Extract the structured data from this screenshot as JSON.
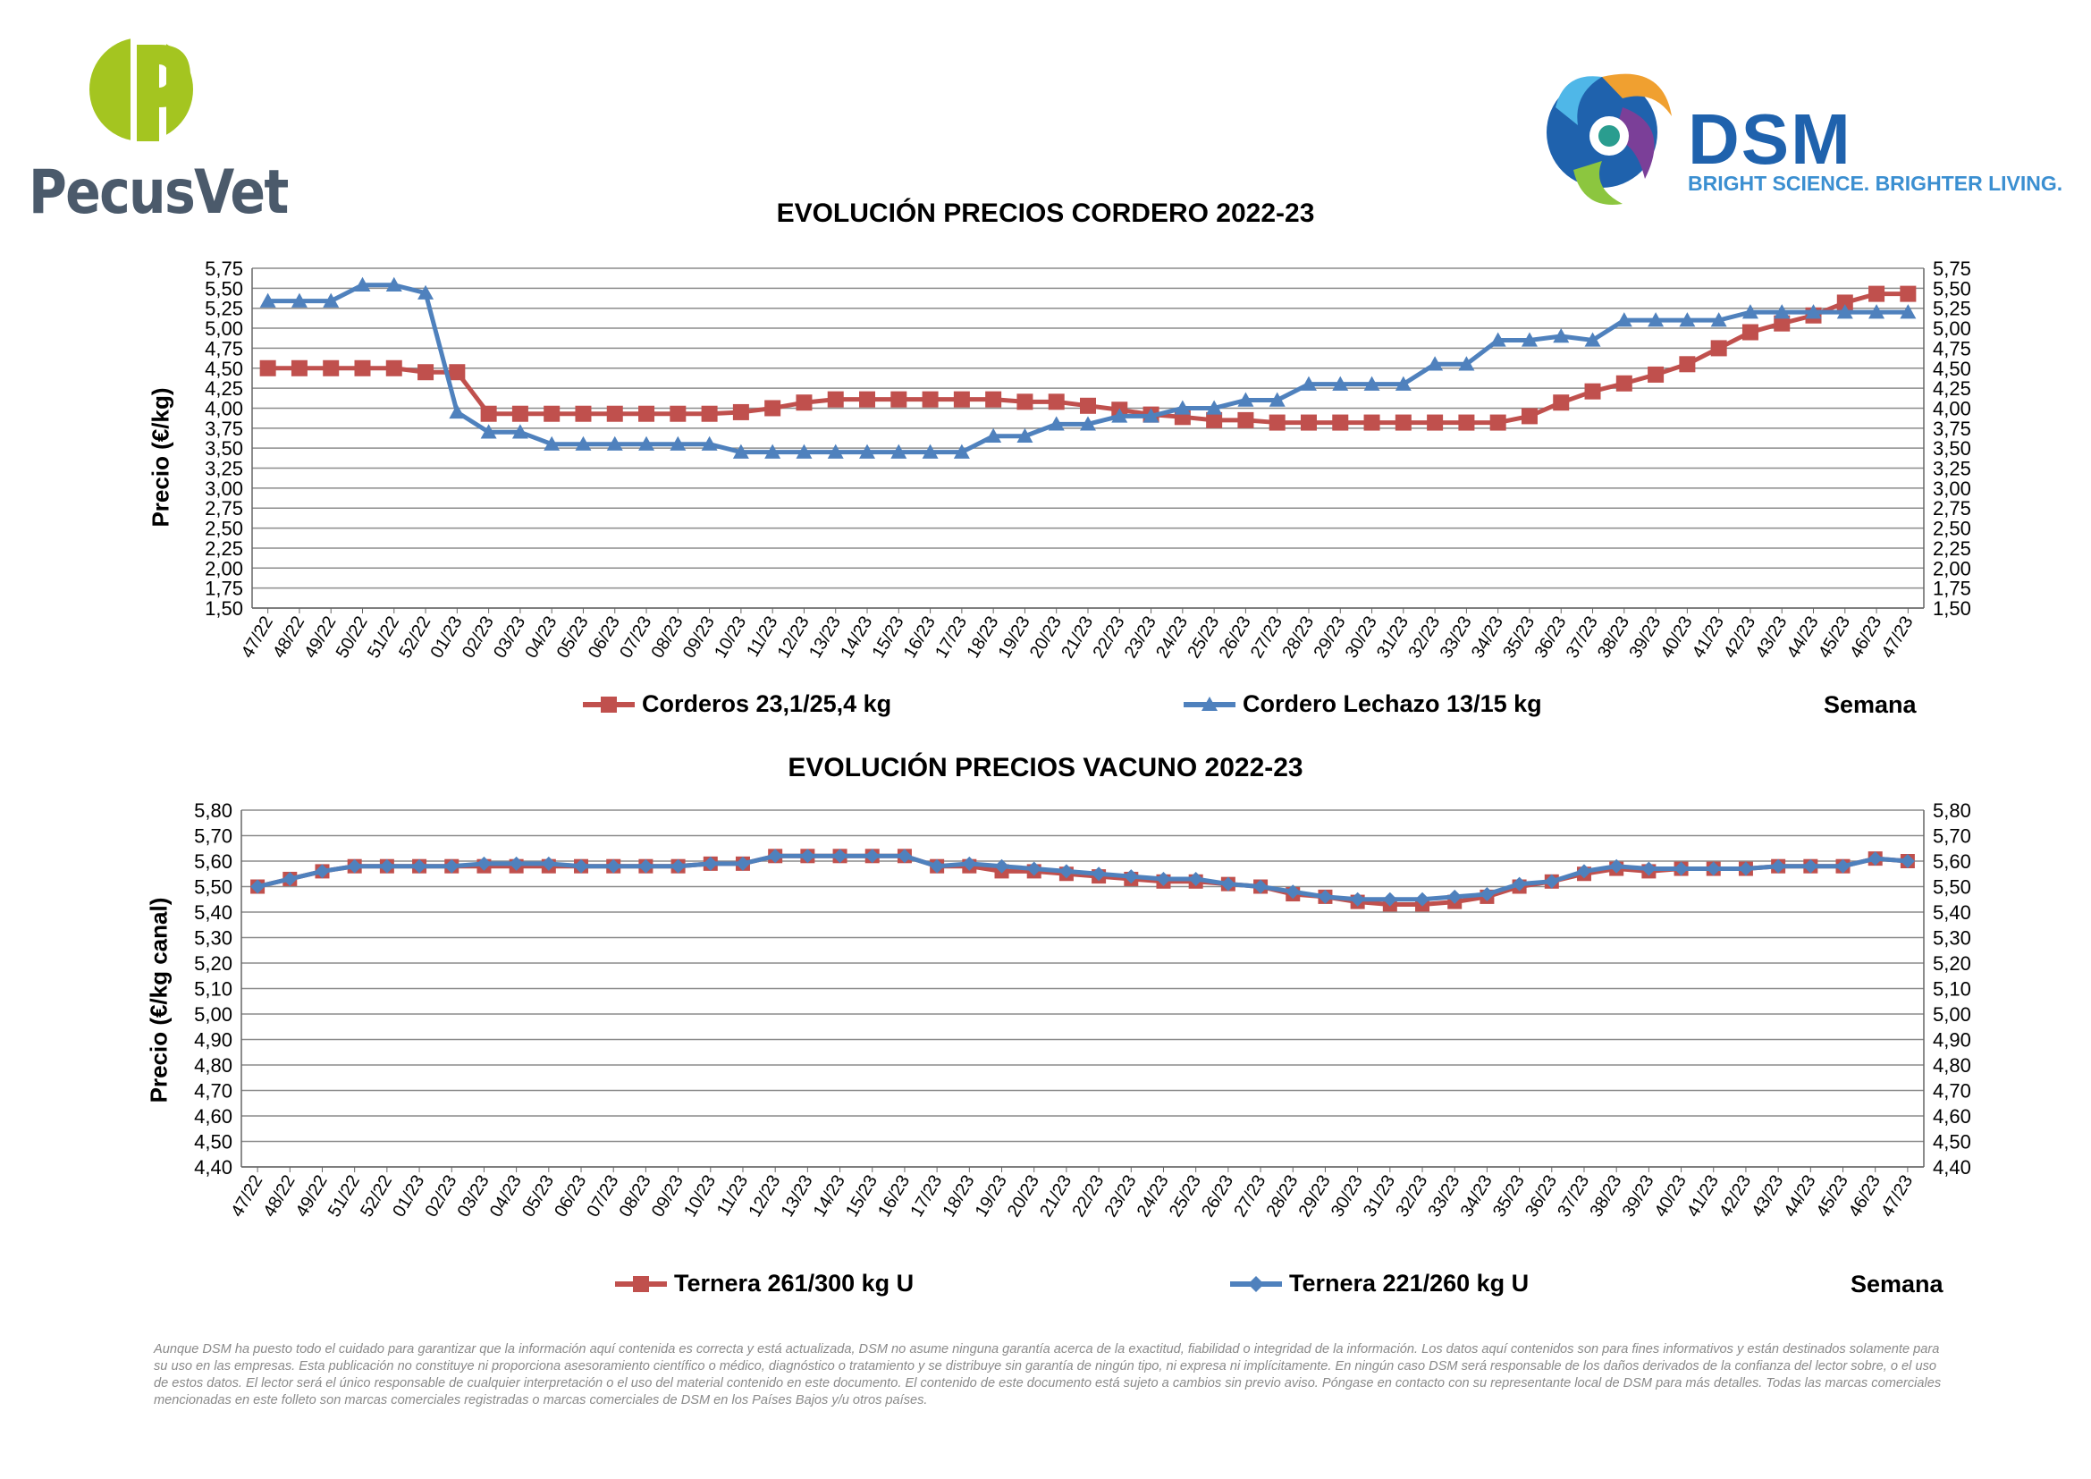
{
  "branding": {
    "left_name": "PecusVet",
    "right_name": "DSM",
    "right_tagline": "BRIGHT SCIENCE. BRIGHTER LIVING.",
    "colors": {
      "pecusvet_green": "#a4c520",
      "pecusvet_text": "#4b5a6b",
      "dsm_blue": "#1f62ad"
    }
  },
  "colors": {
    "red_series": "#c0504d",
    "blue_series": "#4f81bd"
  },
  "x_axis_title": "Semana",
  "chart_data": [
    {
      "type": "line",
      "title": "EVOLUCIÓN PRECIOS CORDERO 2022-23",
      "ylabel": "Precio (€/kg)",
      "xlabel": "Semana",
      "ylim": [
        1.5,
        5.75
      ],
      "yticks": [
        "1,50",
        "1,75",
        "2,00",
        "2,25",
        "2,50",
        "2,75",
        "3,00",
        "3,25",
        "3,50",
        "3,75",
        "4,00",
        "4,25",
        "4,50",
        "4,75",
        "5,00",
        "5,25",
        "5,50",
        "5,75"
      ],
      "grid": true,
      "legend_position": "bottom",
      "categories": [
        "47/22",
        "48/22",
        "49/22",
        "50/22",
        "51/22",
        "52/22",
        "01/23",
        "02/23",
        "03/23",
        "04/23",
        "05/23",
        "06/23",
        "07/23",
        "08/23",
        "09/23",
        "10/23",
        "11/23",
        "12/23",
        "13/23",
        "14/23",
        "15/23",
        "16/23",
        "17/23",
        "18/23",
        "19/23",
        "20/23",
        "21/23",
        "22/23",
        "23/23",
        "24/23",
        "25/23",
        "26/23",
        "27/23",
        "28/23",
        "29/23",
        "30/23",
        "31/23",
        "32/23",
        "33/23",
        "34/23",
        "35/23",
        "36/23",
        "37/23",
        "38/23",
        "39/23",
        "40/23",
        "41/23",
        "42/23",
        "43/23",
        "44/23",
        "45/23",
        "46/23",
        "47/23"
      ],
      "series": [
        {
          "name": "Corderos 23,1/25,4 kg",
          "color": "#c0504d",
          "marker": "square",
          "values": [
            4.5,
            4.5,
            4.5,
            4.5,
            4.5,
            4.45,
            4.45,
            3.93,
            3.93,
            3.93,
            3.93,
            3.93,
            3.93,
            3.93,
            3.93,
            3.95,
            4.0,
            4.07,
            4.11,
            4.11,
            4.11,
            4.11,
            4.11,
            4.11,
            4.08,
            4.08,
            4.03,
            3.98,
            3.92,
            3.89,
            3.85,
            3.85,
            3.82,
            3.82,
            3.82,
            3.82,
            3.82,
            3.82,
            3.82,
            3.82,
            3.9,
            4.07,
            4.21,
            4.31,
            4.42,
            4.55,
            4.75,
            4.95,
            5.06,
            5.16,
            5.32,
            5.43,
            5.43
          ]
        },
        {
          "name": "Cordero Lechazo 13/15 kg",
          "color": "#4f81bd",
          "marker": "triangle",
          "values": [
            5.34,
            5.34,
            5.34,
            5.54,
            5.54,
            5.44,
            3.95,
            3.7,
            3.7,
            3.55,
            3.55,
            3.55,
            3.55,
            3.55,
            3.55,
            3.45,
            3.45,
            3.45,
            3.45,
            3.45,
            3.45,
            3.45,
            3.45,
            3.65,
            3.65,
            3.8,
            3.8,
            3.9,
            3.9,
            4.0,
            4.0,
            4.1,
            4.1,
            4.3,
            4.3,
            4.3,
            4.3,
            4.55,
            4.55,
            4.85,
            4.85,
            4.9,
            4.85,
            5.1,
            5.1,
            5.1,
            5.1,
            5.2,
            5.2,
            5.2,
            5.2,
            5.2,
            5.2
          ]
        }
      ]
    },
    {
      "type": "line",
      "title": "EVOLUCIÓN PRECIOS VACUNO 2022-23",
      "ylabel": "Precio (€/kg canal)",
      "xlabel": "Semana",
      "ylim": [
        4.4,
        5.8
      ],
      "yticks": [
        "4,40",
        "4,50",
        "4,60",
        "4,70",
        "4,80",
        "4,90",
        "5,00",
        "5,10",
        "5,20",
        "5,30",
        "5,40",
        "5,50",
        "5,60",
        "5,70",
        "5,80"
      ],
      "grid": true,
      "legend_position": "bottom",
      "categories": [
        "47/22",
        "48/22",
        "49/22",
        "51/22",
        "52/22",
        "01/23",
        "02/23",
        "03/23",
        "04/23",
        "05/23",
        "06/23",
        "07/23",
        "08/23",
        "09/23",
        "10/23",
        "11/23",
        "12/23",
        "13/23",
        "14/23",
        "15/23",
        "16/23",
        "17/23",
        "18/23",
        "19/23",
        "20/23",
        "21/23",
        "22/23",
        "23/23",
        "24/23",
        "25/23",
        "26/23",
        "27/23",
        "28/23",
        "29/23",
        "30/23",
        "31/23",
        "32/23",
        "33/23",
        "34/23",
        "35/23",
        "36/23",
        "37/23",
        "38/23",
        "39/23",
        "40/23",
        "41/23",
        "42/23",
        "43/23",
        "44/23",
        "45/23",
        "46/23",
        "47/23"
      ],
      "series": [
        {
          "name": "Ternera 261/300 kg U",
          "color": "#c0504d",
          "marker": "square",
          "values": [
            5.5,
            5.53,
            5.56,
            5.58,
            5.58,
            5.58,
            5.58,
            5.58,
            5.58,
            5.58,
            5.58,
            5.58,
            5.58,
            5.58,
            5.59,
            5.59,
            5.62,
            5.62,
            5.62,
            5.62,
            5.62,
            5.58,
            5.58,
            5.56,
            5.56,
            5.55,
            5.54,
            5.53,
            5.52,
            5.52,
            5.51,
            5.5,
            5.47,
            5.46,
            5.44,
            5.43,
            5.43,
            5.44,
            5.46,
            5.5,
            5.52,
            5.55,
            5.57,
            5.56,
            5.57,
            5.57,
            5.57,
            5.58,
            5.58,
            5.58,
            5.61,
            5.6
          ]
        },
        {
          "name": "Ternera 221/260 kg U",
          "color": "#4f81bd",
          "marker": "diamond",
          "values": [
            5.5,
            5.53,
            5.56,
            5.58,
            5.58,
            5.58,
            5.58,
            5.59,
            5.59,
            5.59,
            5.58,
            5.58,
            5.58,
            5.58,
            5.59,
            5.59,
            5.62,
            5.62,
            5.62,
            5.62,
            5.62,
            5.58,
            5.59,
            5.58,
            5.57,
            5.56,
            5.55,
            5.54,
            5.53,
            5.53,
            5.51,
            5.5,
            5.48,
            5.46,
            5.45,
            5.45,
            5.45,
            5.46,
            5.47,
            5.51,
            5.52,
            5.56,
            5.58,
            5.57,
            5.57,
            5.57,
            5.57,
            5.58,
            5.58,
            5.58,
            5.61,
            5.6
          ]
        }
      ]
    }
  ],
  "disclaimer": "Aunque DSM ha puesto todo el cuidado para garantizar que la información aquí contenida es correcta y está actualizada, DSM no asume ninguna garantía acerca de la exactitud, fiabilidad o integridad de la información. Los datos aquí contenidos son para fines informativos y están destinados solamente para su uso en las empresas. Esta publicación no constituye ni proporciona asesoramiento científico o médico, diagnóstico o tratamiento y se distribuye sin garantía de ningún tipo, ni expresa ni implícitamente. En ningún caso DSM será responsable de los daños derivados de la confianza del lector sobre, o el uso de estos datos. El lector será el único responsable de cualquier interpretación o el uso del material contenido en este documento. El contenido de este documento está sujeto a cambios sin previo aviso. Póngase en contacto con su representante local de DSM para más detalles. Todas las marcas comerciales mencionadas en este folleto son marcas comerciales registradas o marcas comerciales de DSM en los Países Bajos y/u otros países."
}
